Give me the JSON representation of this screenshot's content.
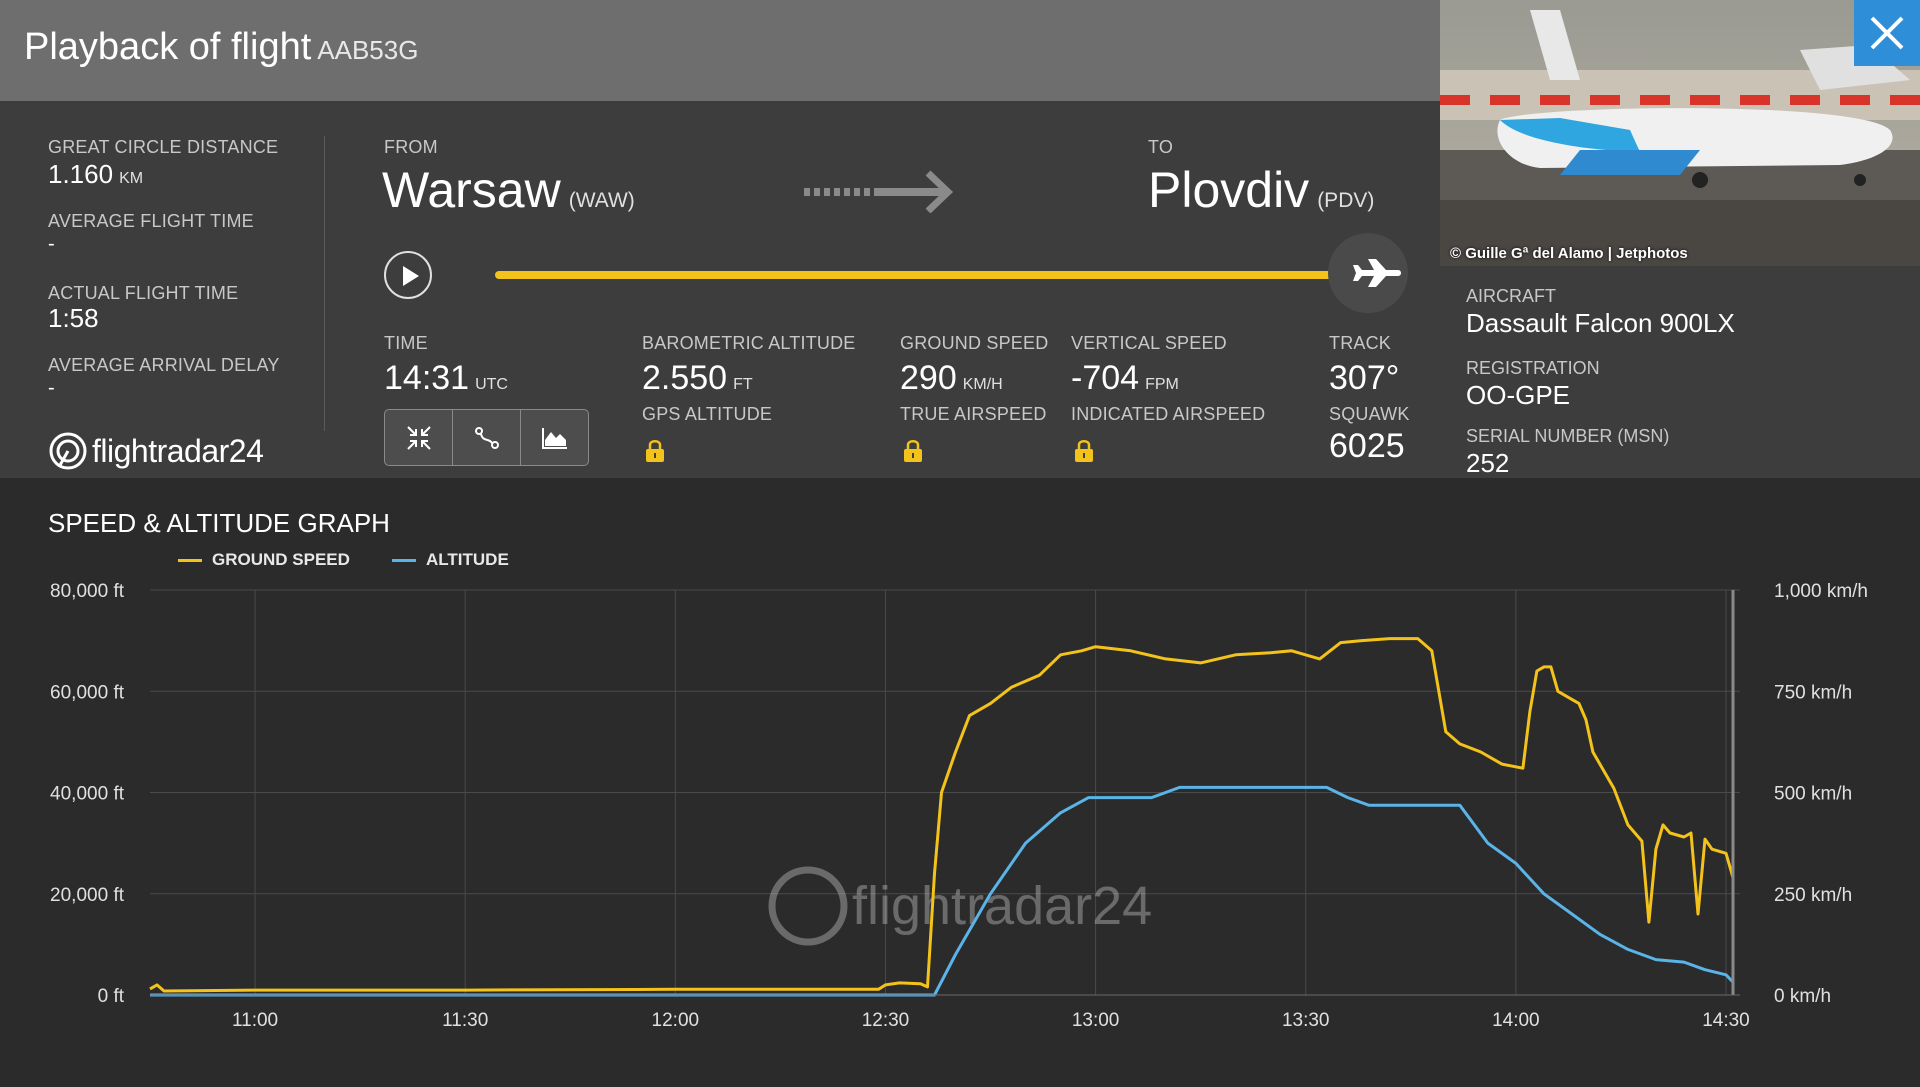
{
  "header": {
    "title": "Playback of flight",
    "flight_number": "AAB53G"
  },
  "stats": {
    "great_circle_distance": {
      "label": "GREAT CIRCLE DISTANCE",
      "value": "1.160",
      "unit": "KM"
    },
    "average_flight_time": {
      "label": "AVERAGE FLIGHT TIME",
      "value": "-"
    },
    "actual_flight_time": {
      "label": "ACTUAL FLIGHT TIME",
      "value": "1:58"
    },
    "average_arrival_delay": {
      "label": "AVERAGE ARRIVAL DELAY",
      "value": "-"
    },
    "logo_text": "flightradar24"
  },
  "route": {
    "from_label": "FROM",
    "from_city": "Warsaw",
    "from_code": "(WAW)",
    "to_label": "TO",
    "to_city": "Plovdiv",
    "to_code": "(PDV)",
    "playback_progress": 1.0
  },
  "telemetry": {
    "time": {
      "label": "TIME",
      "value": "14:31",
      "unit": "UTC"
    },
    "baro_alt": {
      "label": "BAROMETRIC ALTITUDE",
      "value": "2.550",
      "unit": "FT"
    },
    "gps_alt": {
      "label": "GPS ALTITUDE"
    },
    "ground_speed": {
      "label": "GROUND SPEED",
      "value": "290",
      "unit": "KM/H"
    },
    "true_airspeed": {
      "label": "TRUE AIRSPEED"
    },
    "vertical_speed": {
      "label": "VERTICAL SPEED",
      "value": "-704",
      "unit": "FPM"
    },
    "indicated_airspeed": {
      "label": "INDICATED AIRSPEED"
    },
    "track": {
      "label": "TRACK",
      "value": "307°"
    },
    "squawk": {
      "label": "SQUAWK",
      "value": "6025"
    }
  },
  "aircraft": {
    "photo_credit": "© Guille Gª del Alamo | Jetphotos",
    "aircraft_label": "AIRCRAFT",
    "aircraft_value": "Dassault Falcon 900LX",
    "registration_label": "REGISTRATION",
    "registration_value": "OO-GPE",
    "serial_label": "SERIAL NUMBER (MSN)",
    "serial_value": "252"
  },
  "icons": {
    "play": "play-icon",
    "plane": "plane-icon",
    "close": "close-icon",
    "lock": "lock-icon",
    "toggle": [
      "compress-icon",
      "route-icon",
      "area-chart-icon"
    ]
  },
  "colors": {
    "ground_speed": "#f3c21b",
    "altitude": "#5ab4e8",
    "close_button": "#2e8fd8"
  },
  "chart_data": {
    "type": "line",
    "title": "SPEED & ALTITUDE GRAPH",
    "legend_placement": "top-left",
    "grid": true,
    "x_ticks": [
      "11:00",
      "11:30",
      "12:00",
      "12:30",
      "13:00",
      "13:30",
      "14:00",
      "14:30"
    ],
    "x_range_minutes_utc": [
      645,
      872
    ],
    "y_left": {
      "label": "ft",
      "ticks": [
        "0 ft",
        "20,000 ft",
        "40,000 ft",
        "60,000 ft",
        "80,000 ft"
      ],
      "range": [
        0,
        80000
      ]
    },
    "y_right": {
      "label": "km/h",
      "ticks": [
        "0 km/h",
        "250 km/h",
        "500 km/h",
        "750 km/h",
        "1,000 km/h"
      ],
      "range": [
        0,
        1000
      ]
    },
    "series": [
      {
        "name": "GROUND SPEED",
        "axis": "right",
        "color": "#f3c21b",
        "points": [
          [
            "10:45",
            15
          ],
          [
            "10:46",
            25
          ],
          [
            "10:47",
            10
          ],
          [
            "11:00",
            12
          ],
          [
            "11:30",
            12
          ],
          [
            "12:00",
            14
          ],
          [
            "12:29",
            14
          ],
          [
            "12:30",
            25
          ],
          [
            "12:32",
            30
          ],
          [
            "12:35",
            28
          ],
          [
            "12:36",
            20
          ],
          [
            "12:37",
            300
          ],
          [
            "12:38",
            500
          ],
          [
            "12:40",
            600
          ],
          [
            "12:42",
            690
          ],
          [
            "12:45",
            720
          ],
          [
            "12:48",
            760
          ],
          [
            "12:52",
            790
          ],
          [
            "12:55",
            840
          ],
          [
            "12:58",
            850
          ],
          [
            "13:00",
            860
          ],
          [
            "13:05",
            850
          ],
          [
            "13:10",
            830
          ],
          [
            "13:15",
            820
          ],
          [
            "13:20",
            840
          ],
          [
            "13:25",
            845
          ],
          [
            "13:28",
            850
          ],
          [
            "13:32",
            830
          ],
          [
            "13:35",
            870
          ],
          [
            "13:38",
            875
          ],
          [
            "13:42",
            880
          ],
          [
            "13:46",
            880
          ],
          [
            "13:48",
            850
          ],
          [
            "13:50",
            650
          ],
          [
            "13:52",
            620
          ],
          [
            "13:55",
            600
          ],
          [
            "13:58",
            570
          ],
          [
            "14:01",
            560
          ],
          [
            "14:02",
            700
          ],
          [
            "14:03",
            800
          ],
          [
            "14:04",
            810
          ],
          [
            "14:05",
            810
          ],
          [
            "14:06",
            750
          ],
          [
            "14:08",
            730
          ],
          [
            "14:09",
            720
          ],
          [
            "14:10",
            680
          ],
          [
            "14:11",
            600
          ],
          [
            "14:12",
            570
          ],
          [
            "14:14",
            510
          ],
          [
            "14:16",
            420
          ],
          [
            "14:17",
            400
          ],
          [
            "14:18",
            380
          ],
          [
            "14:19",
            180
          ],
          [
            "14:20",
            360
          ],
          [
            "14:21",
            420
          ],
          [
            "14:22",
            400
          ],
          [
            "14:24",
            390
          ],
          [
            "14:25",
            400
          ],
          [
            "14:26",
            200
          ],
          [
            "14:27",
            385
          ],
          [
            "14:28",
            360
          ],
          [
            "14:30",
            350
          ],
          [
            "14:31",
            290
          ]
        ]
      },
      {
        "name": "ALTITUDE",
        "axis": "left",
        "color": "#5ab4e8",
        "points": [
          [
            "10:45",
            0
          ],
          [
            "12:37",
            0
          ],
          [
            "12:40",
            8000
          ],
          [
            "12:45",
            20000
          ],
          [
            "12:50",
            30000
          ],
          [
            "12:55",
            36000
          ],
          [
            "12:59",
            39000
          ],
          [
            "13:00",
            39000
          ],
          [
            "13:08",
            39000
          ],
          [
            "13:12",
            41000
          ],
          [
            "13:33",
            41000
          ],
          [
            "13:36",
            39000
          ],
          [
            "13:39",
            37500
          ],
          [
            "13:52",
            37500
          ],
          [
            "13:56",
            30000
          ],
          [
            "14:00",
            26000
          ],
          [
            "14:04",
            20000
          ],
          [
            "14:08",
            16000
          ],
          [
            "14:12",
            12000
          ],
          [
            "14:16",
            9000
          ],
          [
            "14:20",
            7000
          ],
          [
            "14:24",
            6500
          ],
          [
            "14:27",
            5000
          ],
          [
            "14:30",
            4000
          ],
          [
            "14:31",
            2550
          ]
        ]
      }
    ]
  }
}
